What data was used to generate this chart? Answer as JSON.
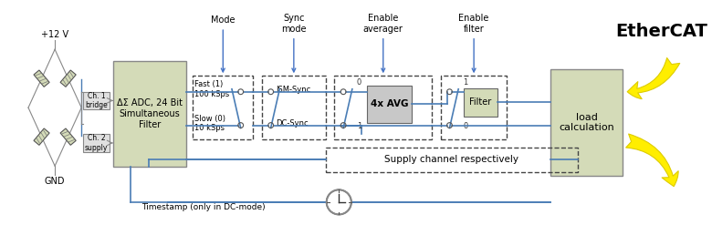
{
  "bg_color": "#ffffff",
  "box_fill": "#d4dbb8",
  "box_fill_gray": "#c8c8c8",
  "box_stroke": "#666666",
  "blue_line": "#4a7db5",
  "arrow_blue": "#4472c4",
  "dashed_stroke": "#444444",
  "yellow_fill": "#ffee00",
  "text_color": "#000000",
  "title": "EtherCAT",
  "adc_label": "ΔΣ ADC, 24 Bit\nSimultaneous\nFilter",
  "load_calc_label": "load\ncalculation",
  "ch1_label": "Ch. 1\nbridge",
  "ch2_label": "Ch. 2\nsupply",
  "fast_label": "Fast (1)\n100 kSps",
  "slow_label": "Slow (0)\n10 kSps",
  "mode_label": "Mode",
  "sync_mode_label": "Sync\nmode",
  "enable_avg_label": "Enable\naverager",
  "enable_filter_label": "Enable\nfilter",
  "sm_sync_label": "ISM-Sync",
  "dc_sync_label": "DC-Sync",
  "avg_label": "4x AVG",
  "filter_label": "Filter",
  "supply_label": "Supply channel respectively",
  "timestamp_label": "Timestamp (only in DC-mode)",
  "voltage_label": "+12 V",
  "gnd_label": "GND"
}
